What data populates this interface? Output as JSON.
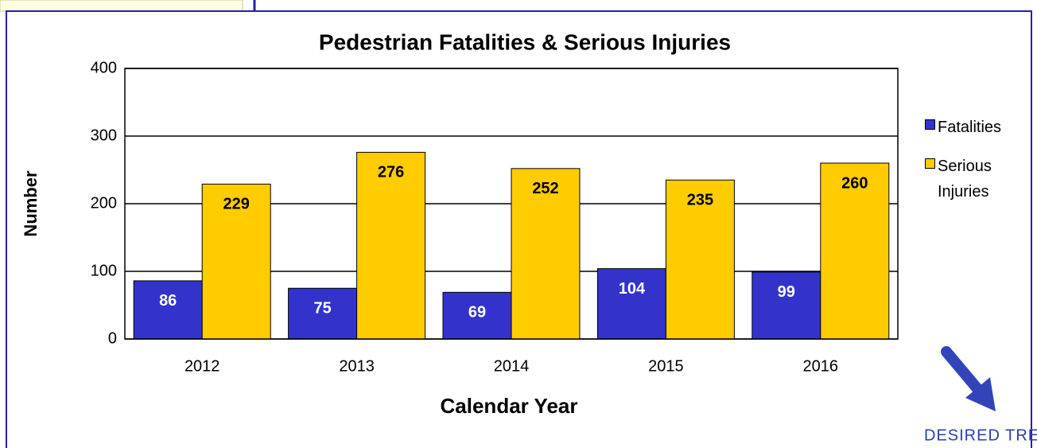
{
  "chart_data": {
    "type": "bar",
    "title": "Pedestrian Fatalities & Serious Injuries",
    "x_label": "Calendar Year",
    "y_label": "Number",
    "annotation": "DESIRED TREND",
    "categories": [
      "2012",
      "2013",
      "2014",
      "2015",
      "2016"
    ],
    "series": [
      {
        "name": "Fatalities",
        "color": "#3333cc",
        "label_color": "#ffffff",
        "values": [
          86,
          75,
          69,
          104,
          99
        ]
      },
      {
        "name": "Serious Injuries",
        "color": "#ffcc00",
        "label_color": "#000000",
        "values": [
          229,
          276,
          252,
          235,
          260
        ]
      }
    ],
    "ylim": [
      0,
      400
    ],
    "yticks": [
      0,
      100,
      200,
      300,
      400
    ],
    "grid": true,
    "legend": "right"
  }
}
